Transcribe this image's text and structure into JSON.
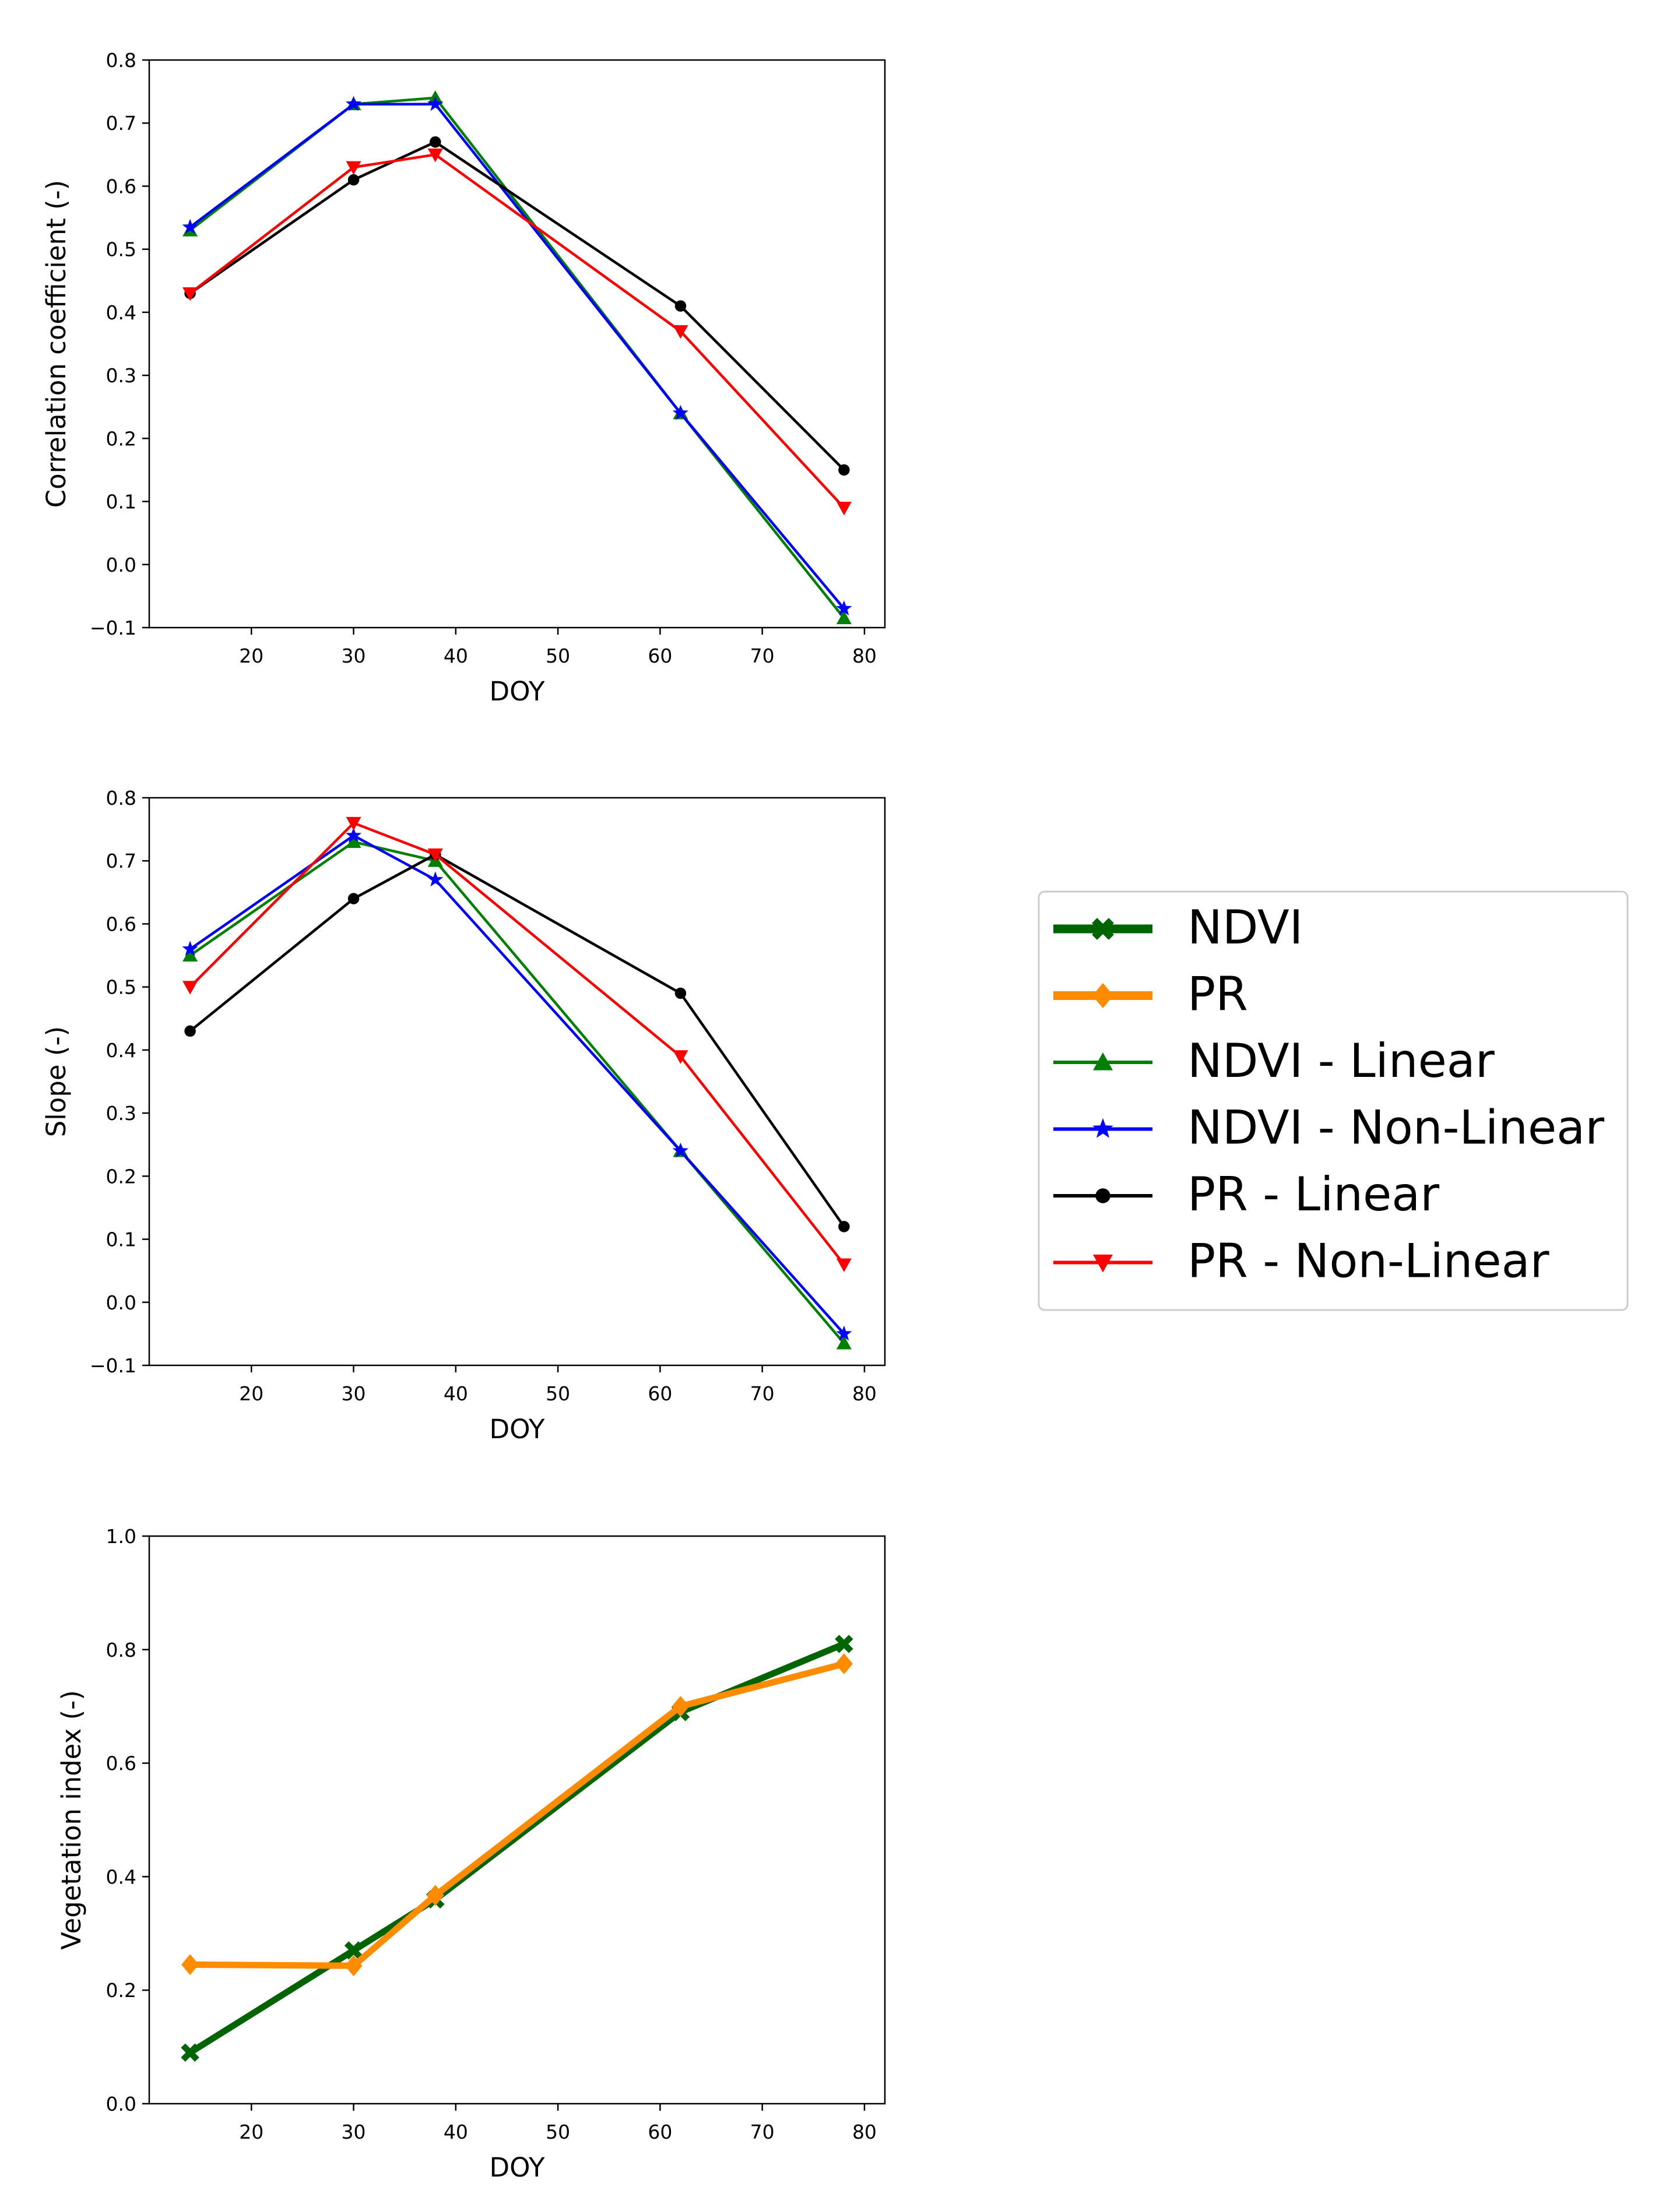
{
  "chart_data": [
    {
      "type": "line",
      "title": "",
      "xlabel": "DOY",
      "ylabel": "Correlation coefficient (-)",
      "xlim": [
        10,
        82
      ],
      "ylim": [
        -0.1,
        0.8
      ],
      "xticks": [
        20,
        30,
        40,
        50,
        60,
        70,
        80
      ],
      "yticks": [
        -0.1,
        0.0,
        0.1,
        0.2,
        0.3,
        0.4,
        0.5,
        0.6,
        0.7,
        0.8
      ],
      "ytick_labels": [
        "−0.1",
        "0.0",
        "0.1",
        "0.2",
        "0.3",
        "0.4",
        "0.5",
        "0.6",
        "0.7",
        "0.8"
      ],
      "grid": false,
      "x": [
        14,
        30,
        38,
        62,
        78
      ],
      "series": [
        {
          "name": "NDVI - Linear",
          "values": [
            0.53,
            0.73,
            0.74,
            0.24,
            -0.085
          ],
          "color": "#008000",
          "marker": "triangle"
        },
        {
          "name": "NDVI - Non-Linear",
          "values": [
            0.535,
            0.73,
            0.73,
            0.24,
            -0.07
          ],
          "color": "#0000ff",
          "marker": "star"
        },
        {
          "name": "PR - Linear",
          "values": [
            0.43,
            0.61,
            0.67,
            0.41,
            0.15
          ],
          "color": "#000000",
          "marker": "circle"
        },
        {
          "name": "PR - Non-Linear",
          "values": [
            0.43,
            0.63,
            0.65,
            0.37,
            0.09
          ],
          "color": "#ff0000",
          "marker": "triangle-down"
        }
      ]
    },
    {
      "type": "line",
      "title": "",
      "xlabel": "DOY",
      "ylabel": "Slope (-)",
      "xlim": [
        10,
        82
      ],
      "ylim": [
        -0.1,
        0.8
      ],
      "xticks": [
        20,
        30,
        40,
        50,
        60,
        70,
        80
      ],
      "yticks": [
        -0.1,
        0.0,
        0.1,
        0.2,
        0.3,
        0.4,
        0.5,
        0.6,
        0.7,
        0.8
      ],
      "ytick_labels": [
        "−0.1",
        "0.0",
        "0.1",
        "0.2",
        "0.3",
        "0.4",
        "0.5",
        "0.6",
        "0.7",
        "0.8"
      ],
      "grid": false,
      "x": [
        14,
        30,
        38,
        62,
        78
      ],
      "series": [
        {
          "name": "NDVI - Linear",
          "values": [
            0.55,
            0.73,
            0.7,
            0.24,
            -0.065
          ],
          "color": "#008000",
          "marker": "triangle"
        },
        {
          "name": "NDVI - Non-Linear",
          "values": [
            0.56,
            0.74,
            0.67,
            0.24,
            -0.05
          ],
          "color": "#0000ff",
          "marker": "star"
        },
        {
          "name": "PR - Linear",
          "values": [
            0.43,
            0.64,
            0.71,
            0.49,
            0.12
          ],
          "color": "#000000",
          "marker": "circle"
        },
        {
          "name": "PR - Non-Linear",
          "values": [
            0.5,
            0.76,
            0.71,
            0.39,
            0.06
          ],
          "color": "#ff0000",
          "marker": "triangle-down"
        }
      ]
    },
    {
      "type": "line",
      "title": "",
      "xlabel": "DOY",
      "ylabel": "Vegetation index (-)",
      "xlim": [
        10,
        82
      ],
      "ylim": [
        0.0,
        1.0
      ],
      "xticks": [
        20,
        30,
        40,
        50,
        60,
        70,
        80
      ],
      "yticks": [
        0.0,
        0.2,
        0.4,
        0.6,
        0.8,
        1.0
      ],
      "ytick_labels": [
        "0.0",
        "0.2",
        "0.4",
        "0.6",
        "0.8",
        "1.0"
      ],
      "grid": false,
      "x": [
        14,
        30,
        38,
        62,
        78
      ],
      "series": [
        {
          "name": "NDVI",
          "values": [
            0.09,
            0.27,
            0.36,
            0.69,
            0.81
          ],
          "color": "#006400",
          "marker": "x-filled",
          "thick": true
        },
        {
          "name": "PR",
          "values": [
            0.245,
            0.243,
            0.367,
            0.7,
            0.775
          ],
          "color": "#ff8c00",
          "marker": "diamond",
          "thick": true
        }
      ]
    }
  ],
  "legend": {
    "placement": "right",
    "entries": [
      {
        "label": "NDVI",
        "color": "#006400",
        "marker": "x-filled",
        "thick": true
      },
      {
        "label": "PR",
        "color": "#ff8c00",
        "marker": "diamond",
        "thick": true
      },
      {
        "label": "NDVI - Linear",
        "color": "#008000",
        "marker": "triangle",
        "thick": false
      },
      {
        "label": "NDVI - Non-Linear",
        "color": "#0000ff",
        "marker": "star",
        "thick": false
      },
      {
        "label": "PR - Linear",
        "color": "#000000",
        "marker": "circle",
        "thick": false
      },
      {
        "label": "PR - Non-Linear",
        "color": "#ff0000",
        "marker": "triangle-down",
        "thick": false
      }
    ]
  }
}
